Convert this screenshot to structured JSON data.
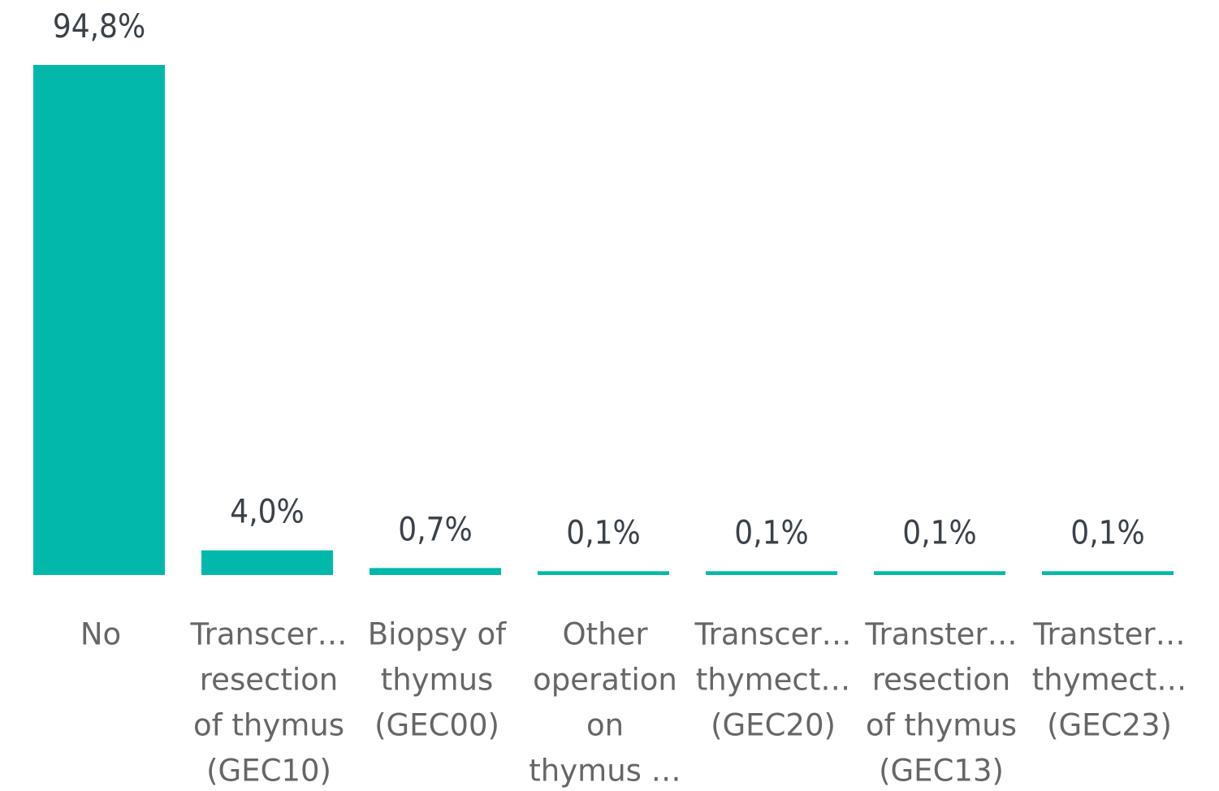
{
  "chart_data": {
    "type": "bar",
    "categories": [
      [
        "No"
      ],
      [
        "Transcer…",
        "resection",
        "of thymus",
        "(GEC10)"
      ],
      [
        "Biopsy of",
        "thymus",
        "(GEC00)"
      ],
      [
        "Other",
        "operation",
        "on",
        "thymus …"
      ],
      [
        "Transcer…",
        "thymect…",
        "(GEC20)"
      ],
      [
        "Transter…",
        "resection",
        "of thymus",
        "(GEC13)"
      ],
      [
        "Transter…",
        "thymect…",
        "(GEC23)"
      ]
    ],
    "values": [
      94.8,
      4.0,
      0.7,
      0.1,
      0.1,
      0.1,
      0.1
    ],
    "value_labels": [
      "94,8%",
      "4,0%",
      "0,7%",
      "0,1%",
      "0,1%",
      "0,1%",
      "0,1%"
    ],
    "color": "#01B8AA"
  }
}
